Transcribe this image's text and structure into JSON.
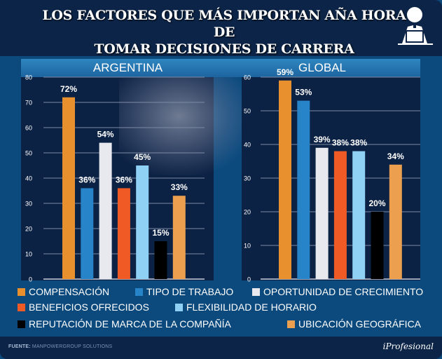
{
  "title": {
    "line1": "LOS FACTORES QUE MÁS IMPORTAN AÑA HORA DE",
    "line2": "TOMAR DECISIONES DE CARRERA"
  },
  "icon": "person-at-laptop-icon",
  "chart_data": [
    {
      "type": "bar",
      "title": "ARGENTINA",
      "categories": [
        "Compensación",
        "Tipo de trabajo",
        "Oportunidad de crecimiento",
        "Beneficios ofrecidos",
        "Flexibilidad de horario",
        "Reputación de marca de la compañía",
        "Ubicación geográfica"
      ],
      "values": [
        72,
        36,
        54,
        36,
        45,
        15,
        33
      ],
      "labels": [
        "72%",
        "36%",
        "54%",
        "36%",
        "45%",
        "15%",
        "33%"
      ],
      "ylim": [
        0,
        80
      ],
      "yticks": [
        0,
        10,
        20,
        30,
        40,
        50,
        60,
        70,
        80
      ],
      "grid": true,
      "xlabel": "",
      "ylabel": ""
    },
    {
      "type": "bar",
      "title": "GLOBAL",
      "categories": [
        "Compensación",
        "Tipo de trabajo",
        "Oportunidad de crecimiento",
        "Beneficios ofrecidos",
        "Flexibilidad de horario",
        "Reputación de marca de la compañía",
        "Ubicación geográfica"
      ],
      "values": [
        59,
        53,
        39,
        38,
        38,
        20,
        34
      ],
      "labels": [
        "59%",
        "53%",
        "39%",
        "38%",
        "38%",
        "20%",
        "34%"
      ],
      "ylim": [
        0,
        60
      ],
      "yticks": [
        0,
        10,
        20,
        30,
        40,
        50,
        60
      ],
      "grid": true,
      "xlabel": "",
      "ylabel": ""
    }
  ],
  "colors": [
    "#e8902e",
    "#2784c9",
    "#e8e9ee",
    "#f05a24",
    "#8fd1f5",
    "#000000",
    "#eb9f4f"
  ],
  "legend": {
    "placement": "bottom",
    "items": [
      "COMPENSACIÓN",
      "TIPO DE TRABAJO",
      "OPORTUNIDAD DE CRECIMIENTO",
      "BENEFICIOS OFRECIDOS",
      "FLEXIBILIDAD DE HORARIO",
      "REPUTACIÓN DE MARCA DE LA COMPAÑÍA",
      "UBICACIÓN GEOGRÁFICA"
    ]
  },
  "footer": {
    "source_label": "FUENTE:",
    "source_value": "MANPOWERGROUP SOLUTIONS",
    "brand": "iProfesional"
  }
}
